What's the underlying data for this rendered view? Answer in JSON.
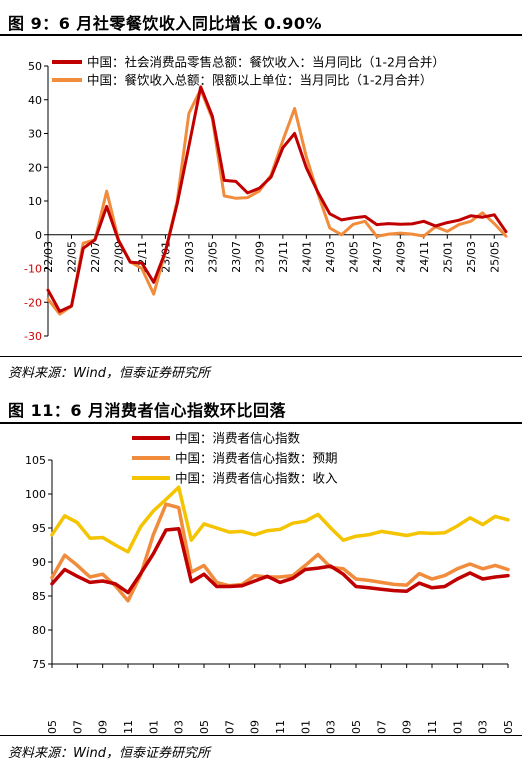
{
  "figure1": {
    "title": "图 9：6 月社零餐饮收入同比增长 0.90%",
    "source": "资料来源：Wind，恒泰证券研究所",
    "chart_data": {
      "type": "line",
      "x": [
        "22/03",
        "22/04",
        "22/05",
        "22/06",
        "22/07",
        "22/08",
        "22/09",
        "22/10",
        "22/11",
        "22/12",
        "23/01",
        "23/02",
        "23/03",
        "23/04",
        "23/05",
        "23/06",
        "23/07",
        "23/08",
        "23/09",
        "23/10",
        "23/11",
        "23/12",
        "24/01",
        "24/02",
        "24/03",
        "24/04",
        "24/05",
        "24/06",
        "24/07",
        "24/08",
        "24/09",
        "24/10",
        "24/11",
        "24/12",
        "25/01",
        "25/02",
        "25/03",
        "25/04",
        "25/05",
        "25/06"
      ],
      "xticks": [
        "22/03",
        "22/05",
        "22/07",
        "22/09",
        "22/11",
        "23/01",
        "23/03",
        "23/05",
        "23/07",
        "23/09",
        "23/11",
        "24/01",
        "24/03",
        "24/05",
        "24/07",
        "24/09",
        "24/11",
        "25/01",
        "25/03",
        "25/05"
      ],
      "series": [
        {
          "name": "中国：社会消费品零售总额：餐饮收入：当月同比（1-2月合并）",
          "color": "#c00000",
          "values": [
            -16.4,
            -22.7,
            -21.1,
            -4.0,
            -1.5,
            8.4,
            -1.7,
            -8.1,
            -8.4,
            -14.1,
            -5.0,
            9.2,
            26.3,
            43.8,
            35.1,
            16.1,
            15.8,
            12.4,
            13.8,
            17.1,
            25.8,
            30.0,
            19.8,
            12.5,
            6.2,
            4.4,
            5.0,
            5.4,
            3.0,
            3.3,
            3.1,
            3.2,
            4.0,
            2.6,
            3.6,
            4.3,
            5.6,
            5.2,
            5.9,
            0.9
          ]
        },
        {
          "name": "中国：餐饮收入总额：限额以上单位：当月同比（1-2月合并）",
          "color": "#f08c3c",
          "values": [
            -19.1,
            -23.5,
            -21.2,
            -2.5,
            -1.5,
            12.9,
            -1.5,
            -8.0,
            -10.0,
            -17.6,
            -4.9,
            10.0,
            36.0,
            43.0,
            34.3,
            11.5,
            10.8,
            11.0,
            13.0,
            17.7,
            28.0,
            37.4,
            23.0,
            12.0,
            2.0,
            0.0,
            3.1,
            4.0,
            -0.5,
            0.2,
            0.5,
            0.2,
            -0.4,
            2.4,
            1.0,
            3.0,
            4.0,
            6.5,
            3.3,
            -0.4
          ]
        }
      ],
      "ylim": [
        -30,
        50
      ],
      "yticks": [
        -30,
        -20,
        -10,
        0,
        10,
        20,
        30,
        40,
        50
      ]
    }
  },
  "figure2": {
    "title": "图 11：6 月消费者信心指数环比回落",
    "source": "资料来源：Wind，恒泰证券研究所",
    "chart_data": {
      "type": "line",
      "x": [
        "22/05",
        "22/06",
        "22/07",
        "22/08",
        "22/09",
        "22/10",
        "22/11",
        "22/12",
        "23/01",
        "23/02",
        "23/03",
        "23/04",
        "23/05",
        "23/06",
        "23/07",
        "23/08",
        "23/09",
        "23/10",
        "23/11",
        "23/12",
        "24/01",
        "24/02",
        "24/03",
        "24/04",
        "24/05",
        "24/06",
        "24/07",
        "24/08",
        "24/09",
        "24/10",
        "24/11",
        "24/12",
        "25/01",
        "25/02",
        "25/03",
        "25/04",
        "25/05"
      ],
      "xticks": [
        "22/05",
        "22/07",
        "22/09",
        "22/11",
        "23/01",
        "23/03",
        "23/05",
        "23/07",
        "23/09",
        "23/11",
        "24/01",
        "24/03",
        "24/05",
        "24/07",
        "24/09",
        "24/11",
        "25/01",
        "25/03",
        "25/05"
      ],
      "series": [
        {
          "name": "中国：消费者信心指数",
          "color": "#c00000",
          "values": [
            86.8,
            88.9,
            87.9,
            87.0,
            87.2,
            86.8,
            85.5,
            88.3,
            91.2,
            94.7,
            94.9,
            87.1,
            88.2,
            86.4,
            86.4,
            86.5,
            87.2,
            87.9,
            87.0,
            87.6,
            88.9,
            89.1,
            89.4,
            88.2,
            86.4,
            86.2,
            86.0,
            85.8,
            85.7,
            86.9,
            86.2,
            86.4,
            87.5,
            88.4,
            87.5,
            87.8,
            88.0
          ]
        },
        {
          "name": "中国：消费者信心指数：预期",
          "color": "#f08c3c",
          "values": [
            87.7,
            91.0,
            89.5,
            87.8,
            88.2,
            86.5,
            84.3,
            88.1,
            94.0,
            98.5,
            98.0,
            88.5,
            89.5,
            87.0,
            86.5,
            86.7,
            88.0,
            87.8,
            87.8,
            88.0,
            89.5,
            91.1,
            89.2,
            89.0,
            87.5,
            87.3,
            87.0,
            86.7,
            86.6,
            88.3,
            87.5,
            88.0,
            89.0,
            89.7,
            89.0,
            89.5,
            88.9
          ]
        },
        {
          "name": "中国：消费者信心指数：收入",
          "color": "#f5c400",
          "values": [
            94.0,
            96.8,
            95.8,
            93.5,
            93.6,
            92.5,
            91.5,
            95.2,
            97.5,
            99.2,
            101.0,
            93.2,
            95.6,
            95.0,
            94.4,
            94.5,
            94.0,
            94.6,
            94.8,
            95.7,
            96.0,
            97.0,
            95.0,
            93.2,
            93.8,
            94.0,
            94.5,
            94.2,
            93.9,
            94.3,
            94.2,
            94.3,
            95.3,
            96.5,
            95.5,
            96.7,
            96.2
          ]
        }
      ],
      "ylim": [
        75,
        105
      ],
      "yticks": [
        75,
        80,
        85,
        90,
        95,
        100,
        105
      ]
    }
  }
}
